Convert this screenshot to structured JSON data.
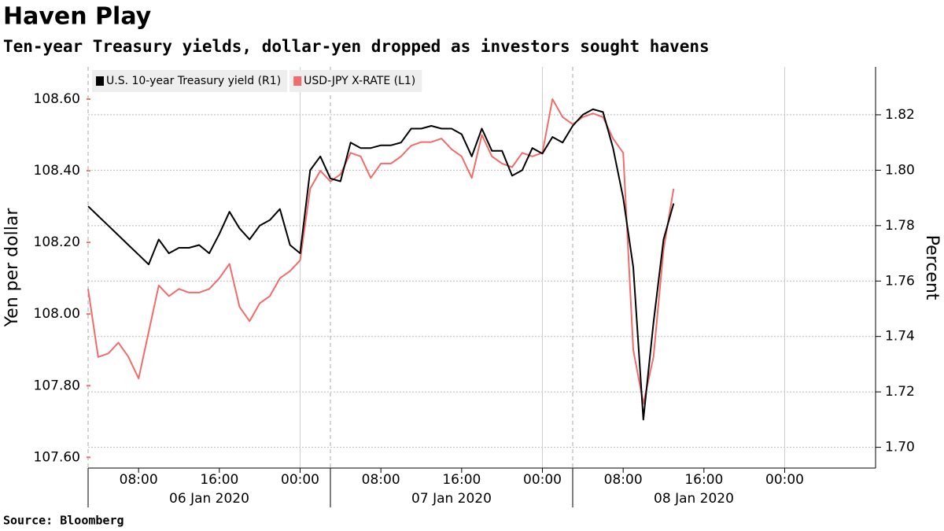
{
  "chart_data": {
    "type": "line",
    "title": "Haven Play",
    "subtitle": "Ten-year Treasury yields, dollar-yen dropped as investors sought havens",
    "source": "Source: Bloomberg",
    "ylabel": "Yen per dollar",
    "y2label": "Percent",
    "x": [
      "2020-01-06T03:00",
      "2020-01-06T04:00",
      "2020-01-06T05:00",
      "2020-01-06T06:00",
      "2020-01-06T07:00",
      "2020-01-06T08:00",
      "2020-01-06T09:00",
      "2020-01-06T10:00",
      "2020-01-06T11:00",
      "2020-01-06T12:00",
      "2020-01-06T13:00",
      "2020-01-06T14:00",
      "2020-01-06T15:00",
      "2020-01-06T16:00",
      "2020-01-06T17:00",
      "2020-01-06T18:00",
      "2020-01-06T19:00",
      "2020-01-06T20:00",
      "2020-01-06T21:00",
      "2020-01-06T22:00",
      "2020-01-06T23:00",
      "2020-01-07T00:00",
      "2020-01-07T01:00",
      "2020-01-07T02:00",
      "2020-01-07T03:00",
      "2020-01-07T04:00",
      "2020-01-07T05:00",
      "2020-01-07T06:00",
      "2020-01-07T07:00",
      "2020-01-07T08:00",
      "2020-01-07T09:00",
      "2020-01-07T10:00",
      "2020-01-07T11:00",
      "2020-01-07T12:00",
      "2020-01-07T13:00",
      "2020-01-07T14:00",
      "2020-01-07T15:00",
      "2020-01-07T16:00",
      "2020-01-07T17:00",
      "2020-01-07T18:00",
      "2020-01-07T19:00",
      "2020-01-07T20:00",
      "2020-01-07T21:00",
      "2020-01-07T22:00",
      "2020-01-07T23:00",
      "2020-01-08T00:00",
      "2020-01-08T01:00",
      "2020-01-08T02:00",
      "2020-01-08T03:00",
      "2020-01-08T04:00",
      "2020-01-08T05:00",
      "2020-01-08T06:00",
      "2020-01-08T07:00",
      "2020-01-08T08:00",
      "2020-01-08T09:00",
      "2020-01-08T10:00",
      "2020-01-08T11:00",
      "2020-01-08T12:00",
      "2020-01-08T13:00"
    ],
    "series": [
      {
        "name": "U.S. 10-year Treasury yield (R1)",
        "color": "#000000",
        "axis": "y2",
        "values": [
          1.787,
          1.7835,
          1.78,
          1.7765,
          1.773,
          1.7695,
          1.766,
          1.775,
          1.77,
          1.772,
          1.772,
          1.773,
          1.77,
          1.777,
          1.785,
          1.779,
          1.775,
          1.78,
          1.782,
          1.786,
          1.773,
          1.77,
          1.8,
          1.805,
          1.797,
          1.796,
          1.81,
          1.808,
          1.808,
          1.809,
          1.809,
          1.81,
          1.815,
          1.815,
          1.816,
          1.815,
          1.815,
          1.813,
          1.805,
          1.815,
          1.807,
          1.807,
          1.798,
          1.8,
          1.808,
          1.806,
          1.812,
          1.81,
          1.816,
          1.82,
          1.822,
          1.821,
          1.808,
          1.79,
          1.765,
          1.71,
          1.745,
          1.775,
          1.788
        ]
      },
      {
        "name": "USD-JPY X-RATE  (L1)",
        "color": "#f26b6b",
        "axis": "y",
        "values": [
          108.07,
          107.88,
          107.89,
          107.92,
          107.88,
          107.82,
          107.95,
          108.08,
          108.05,
          108.07,
          108.06,
          108.06,
          108.07,
          108.1,
          108.14,
          108.02,
          107.98,
          108.03,
          108.05,
          108.1,
          108.12,
          108.15,
          108.35,
          108.4,
          108.37,
          108.39,
          108.45,
          108.44,
          108.38,
          108.42,
          108.42,
          108.44,
          108.47,
          108.48,
          108.48,
          108.49,
          108.46,
          108.44,
          108.38,
          108.5,
          108.44,
          108.42,
          108.41,
          108.45,
          108.44,
          108.45,
          108.6,
          108.55,
          108.53,
          108.55,
          108.56,
          108.55,
          108.49,
          108.45,
          107.9,
          107.75,
          107.88,
          108.18,
          108.35
        ]
      }
    ],
    "xlim": [
      "2020-01-06T03:00",
      "2020-01-09T09:00"
    ],
    "xticks": [
      {
        "value": "2020-01-06T08:00",
        "label": "08:00"
      },
      {
        "value": "2020-01-06T16:00",
        "label": "16:00"
      },
      {
        "value": "2020-01-07T00:00",
        "label": "00:00",
        "grid": true
      },
      {
        "value": "2020-01-07T08:00",
        "label": "08:00"
      },
      {
        "value": "2020-01-07T16:00",
        "label": "16:00"
      },
      {
        "value": "2020-01-08T00:00",
        "label": "00:00",
        "grid": true
      },
      {
        "value": "2020-01-08T08:00",
        "label": "08:00"
      },
      {
        "value": "2020-01-08T16:00",
        "label": "16:00"
      },
      {
        "value": "2020-01-09T00:00",
        "label": "00:00",
        "grid": true
      }
    ],
    "x_groups": [
      {
        "label": "06 Jan 2020",
        "start": "2020-01-06T03:00",
        "end": "2020-01-07T03:00"
      },
      {
        "label": "07 Jan 2020",
        "start": "2020-01-07T03:00",
        "end": "2020-01-08T03:00"
      },
      {
        "label": "08 Jan 2020",
        "start": "2020-01-08T03:00",
        "end": "2020-01-09T03:00"
      }
    ],
    "ylim": [
      107.57,
      108.69
    ],
    "yticks": [
      {
        "value": 107.6,
        "label": "107.60"
      },
      {
        "value": 107.8,
        "label": "107.80"
      },
      {
        "value": 108,
        "label": "108.00"
      },
      {
        "value": 108.2,
        "label": "108.20"
      },
      {
        "value": 108.4,
        "label": "108.40"
      },
      {
        "value": 108.6,
        "label": "108.60"
      }
    ],
    "y2lim": [
      1.6925,
      1.8373
    ],
    "y2ticks": [
      {
        "value": 1.7,
        "label": "1.70"
      },
      1.72,
      1.74,
      1.76,
      1.78,
      {
        "value": 1.8,
        "label": "1.80"
      },
      1.82
    ],
    "grid": true,
    "legend": "top-left"
  }
}
